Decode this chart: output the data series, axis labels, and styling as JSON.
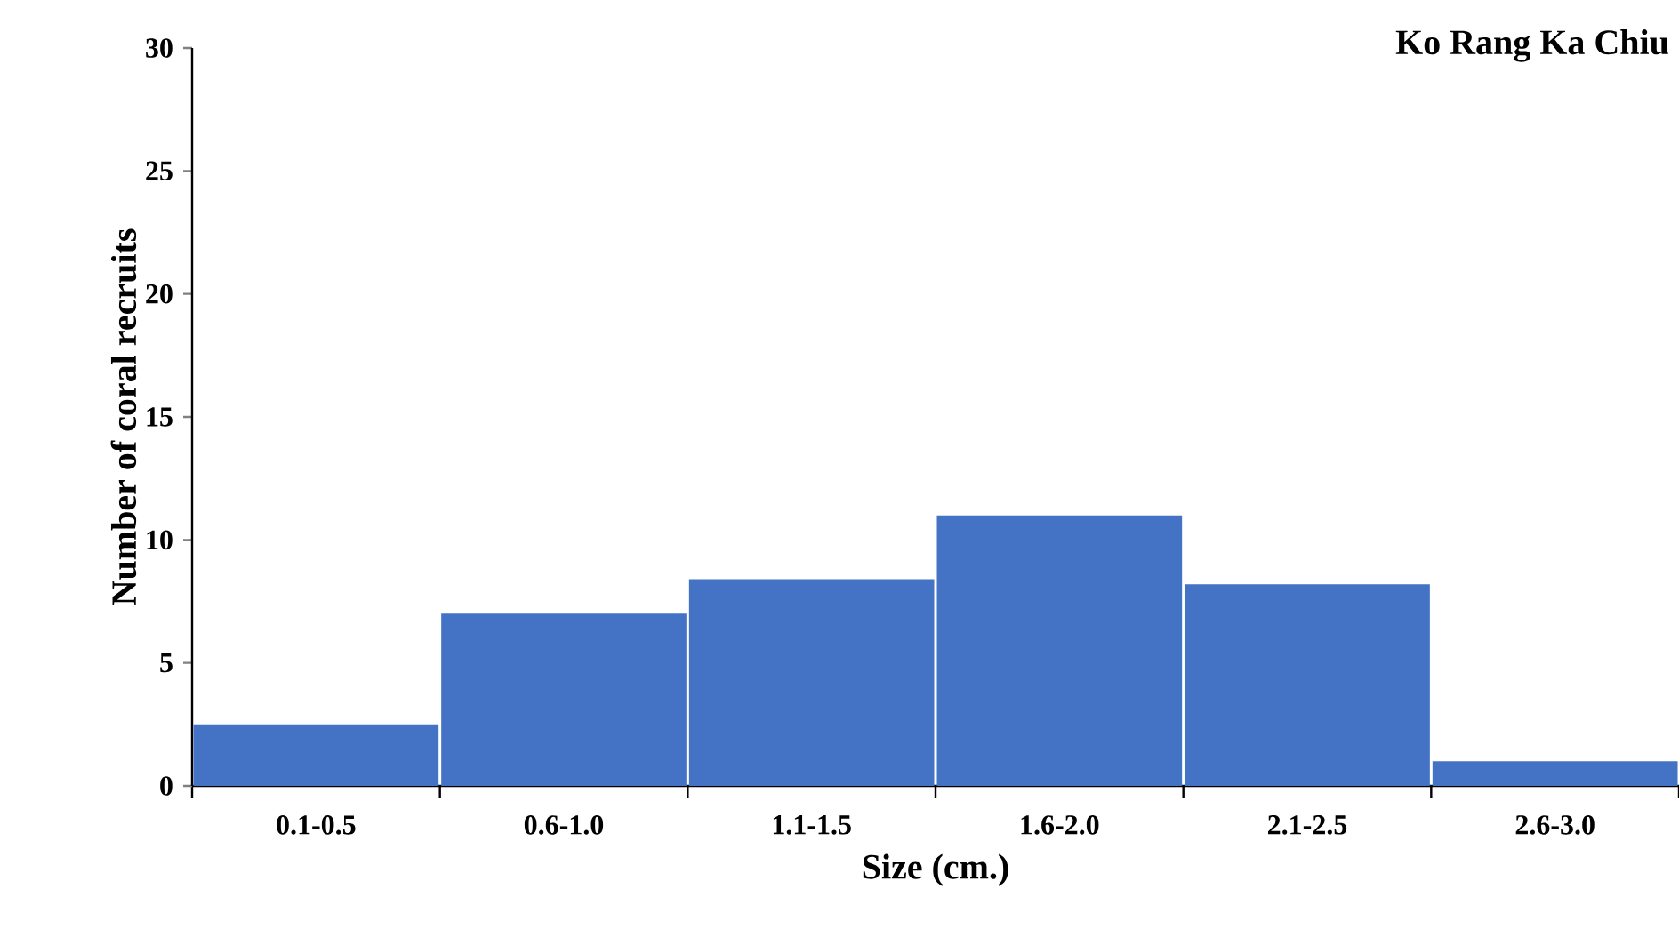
{
  "chart_data": {
    "type": "bar",
    "title": "Ko Rang Ka Chiu",
    "xlabel": "Size (cm.)",
    "ylabel": "Number of coral recruits",
    "categories": [
      "0.1-0.5",
      "0.6-1.0",
      "1.1-1.5",
      "1.6-2.0",
      "2.1-2.5",
      "2.6-3.0"
    ],
    "values": [
      2.5,
      7,
      8.4,
      11,
      8.2,
      1
    ],
    "color": "#4472c4",
    "ylim": [
      0,
      30
    ],
    "yticks": [
      0,
      5,
      10,
      15,
      20,
      25,
      30
    ]
  }
}
